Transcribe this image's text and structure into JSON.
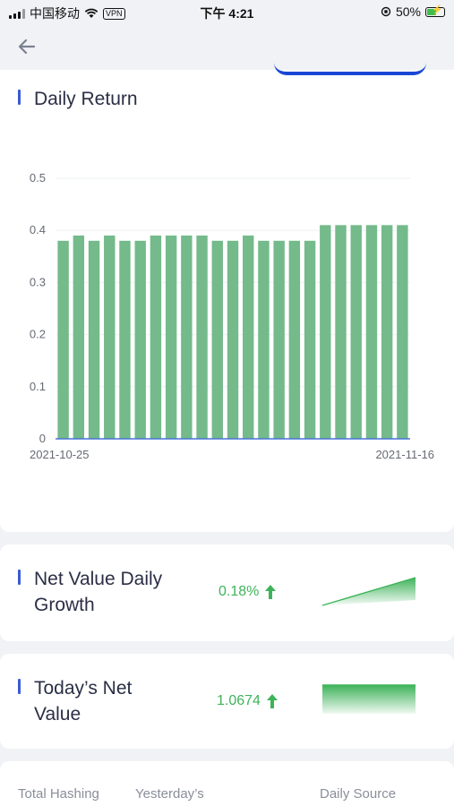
{
  "status_bar": {
    "carrier": "中国移动",
    "vpn": "VPN",
    "time": "下午 4:21",
    "battery": "50%"
  },
  "nav": {
    "back_icon": "arrow-left-icon"
  },
  "daily_return": {
    "title": "Daily Return"
  },
  "chart_data": {
    "type": "bar",
    "title": "Daily Return",
    "x_first_label": "2021-10-25",
    "x_last_label": "2021-11-16",
    "y_ticks": [
      "0.5",
      "0.4",
      "0.3",
      "0.2",
      "0.1",
      "0"
    ],
    "ylim": [
      0,
      0.5
    ],
    "values": [
      0.38,
      0.39,
      0.38,
      0.39,
      0.38,
      0.38,
      0.39,
      0.39,
      0.39,
      0.39,
      0.38,
      0.38,
      0.39,
      0.38,
      0.38,
      0.38,
      0.38,
      0.41,
      0.41,
      0.41,
      0.41,
      0.41,
      0.41
    ],
    "bar_color": "#74ba8b",
    "axis_color": "#4a74d8",
    "grid": true
  },
  "net_value_growth": {
    "title_line1": "Net Value Daily",
    "title_line2": "Growth",
    "value": "0.18%",
    "trend": "up"
  },
  "todays_net_value": {
    "title_line1": "Today’s Net",
    "title_line2": "Value",
    "value": "1.0674",
    "trend": "up"
  },
  "bottom": {
    "col1": "Total Hashing",
    "col2": "Yesterday’s",
    "col3": "Daily Source"
  },
  "colors": {
    "accent": "#3a5bd6",
    "positive": "#3fb35a"
  }
}
